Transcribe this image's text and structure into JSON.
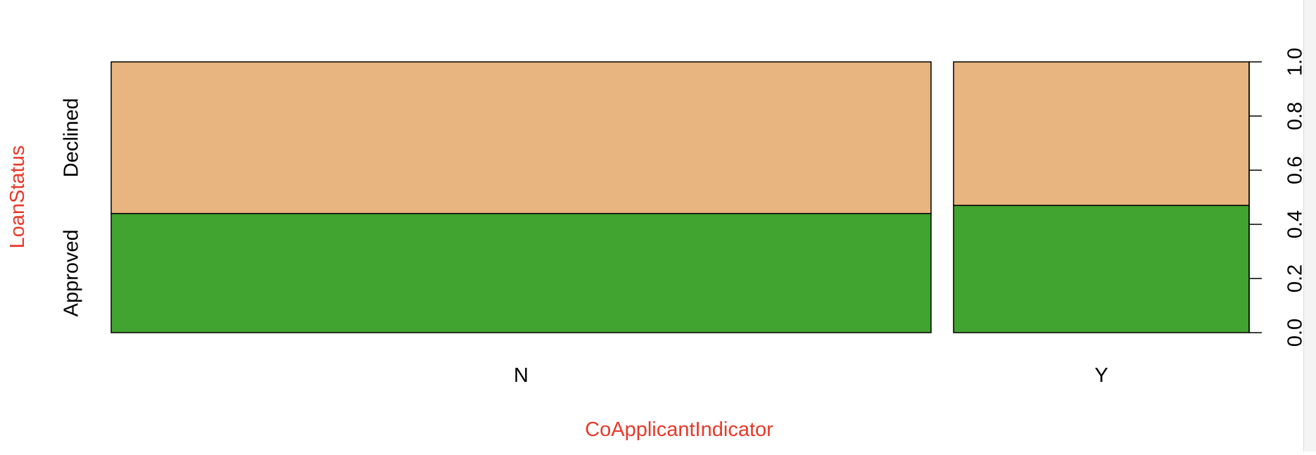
{
  "chart_data": {
    "type": "mosaic",
    "xlabel": "CoApplicantIndicator",
    "ylabel": "LoanStatus",
    "categories": [
      "N",
      "Y"
    ],
    "category_widths": [
      0.735,
      0.265
    ],
    "series": [
      {
        "name": "Approved",
        "values": [
          0.44,
          0.47
        ]
      },
      {
        "name": "Declined",
        "values": [
          0.56,
          0.53
        ]
      }
    ],
    "series_colors": [
      "#41a330",
      "#e8b47f"
    ],
    "label_color": "#e8392a",
    "ylim": [
      0,
      1
    ],
    "yticks": [
      "0.0",
      "0.2",
      "0.4",
      "0.6",
      "0.8",
      "1.0"
    ],
    "ytick_values": [
      0,
      0.2,
      0.4,
      0.6,
      0.8,
      1.0
    ],
    "yaxis_position": "right",
    "grid": false,
    "legend": "none"
  }
}
